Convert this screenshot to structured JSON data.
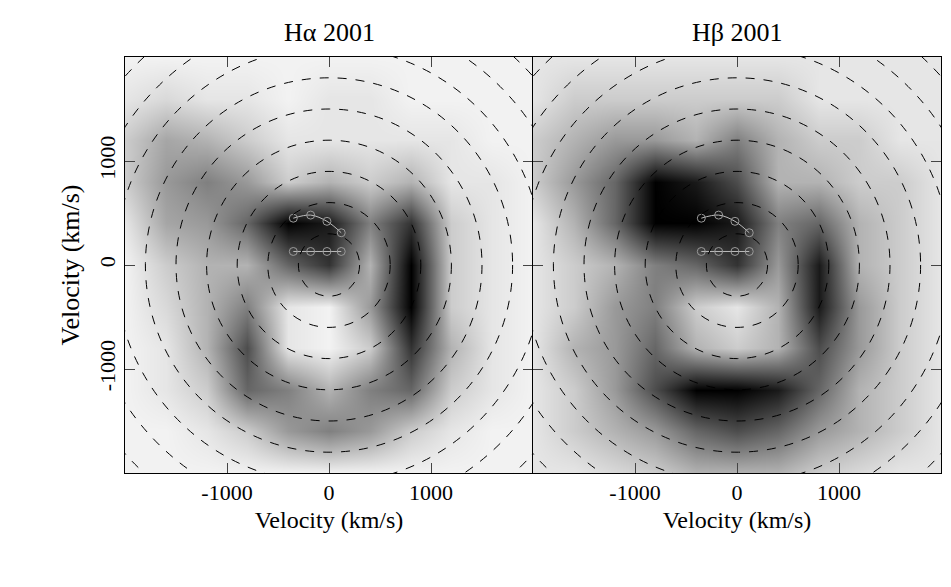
{
  "chart_data": [
    {
      "type": "heatmap",
      "title": "Hα 2001",
      "xlabel": "Velocity (km/s)",
      "ylabel": "Velocity (km/s)",
      "xlim": [
        -2000,
        2000
      ],
      "ylim": [
        -2000,
        2000
      ],
      "xticks": [
        -1000,
        0,
        1000
      ],
      "yticks": [
        -1000,
        0,
        1000
      ],
      "x": [
        -2000,
        -1600,
        -1200,
        -800,
        -400,
        0,
        400,
        800,
        1200,
        1600,
        2000
      ],
      "y": [
        -2000,
        -1600,
        -1200,
        -800,
        -400,
        0,
        400,
        800,
        1200,
        1600,
        2000
      ],
      "zlim": [
        0,
        1
      ],
      "z": [
        [
          0.05,
          0.05,
          0.05,
          0.05,
          0.05,
          0.05,
          0.05,
          0.05,
          0.05,
          0.05,
          0.05
        ],
        [
          0.05,
          0.05,
          0.1,
          0.2,
          0.4,
          0.5,
          0.4,
          0.2,
          0.1,
          0.05,
          0.05
        ],
        [
          0.05,
          0.1,
          0.2,
          0.6,
          0.5,
          0.3,
          0.5,
          0.6,
          0.2,
          0.1,
          0.05
        ],
        [
          0.05,
          0.1,
          0.3,
          0.7,
          0.1,
          0.05,
          0.2,
          0.8,
          0.3,
          0.1,
          0.05
        ],
        [
          0.05,
          0.15,
          0.3,
          0.5,
          0.1,
          0.05,
          0.4,
          1,
          0.2,
          0.1,
          0.05
        ],
        [
          0.05,
          0.2,
          0.3,
          0.3,
          0.6,
          0.8,
          0.3,
          1,
          0.2,
          0.1,
          0.05
        ],
        [
          0.1,
          0.35,
          0.4,
          0.6,
          1,
          0.9,
          0.5,
          0.8,
          0.2,
          0.1,
          0.05
        ],
        [
          0.2,
          0.4,
          0.5,
          0.4,
          0.2,
          0.3,
          0.2,
          0.3,
          0.1,
          0.1,
          0.05
        ],
        [
          0.2,
          0.35,
          0.3,
          0.2,
          0.1,
          0.1,
          0.1,
          0.1,
          0.1,
          0.05,
          0.05
        ],
        [
          0.1,
          0.15,
          0.1,
          0.1,
          0.05,
          0.1,
          0.1,
          0.05,
          0.05,
          0.05,
          0.05
        ],
        [
          0.05,
          0.05,
          0.05,
          0.05,
          0.05,
          0.05,
          0.05,
          0.05,
          0.05,
          0.05,
          0.05
        ]
      ],
      "circles": [
        300,
        600,
        900,
        1200,
        1500,
        1800,
        2100,
        2400,
        2700
      ],
      "stream": {
        "x": [
          -350,
          -180,
          -20,
          120,
          -350,
          -180,
          -20,
          120
        ],
        "y": [
          130,
          130,
          130,
          130,
          450,
          480,
          420,
          310
        ]
      },
      "color": "#000000"
    },
    {
      "type": "heatmap",
      "title": "Hβ 2001",
      "xlabel": "Velocity (km/s)",
      "xlim": [
        -2000,
        2000
      ],
      "ylim": [
        -2000,
        2000
      ],
      "xticks": [
        -1000,
        0,
        1000
      ],
      "yticks": [
        -1000,
        0,
        1000
      ],
      "tick_labels": "x",
      "x": [
        -2000,
        -1600,
        -1200,
        -800,
        -400,
        0,
        400,
        800,
        1200,
        1600,
        2000
      ],
      "y": [
        -2000,
        -1600,
        -1200,
        -800,
        -400,
        0,
        400,
        800,
        1200,
        1600,
        2000
      ],
      "zlim": [
        0,
        1
      ],
      "z": [
        [
          0.1,
          0.1,
          0.15,
          0.2,
          0.3,
          0.3,
          0.3,
          0.2,
          0.15,
          0.1,
          0.1
        ],
        [
          0.1,
          0.2,
          0.3,
          0.4,
          0.6,
          0.7,
          0.6,
          0.4,
          0.3,
          0.2,
          0.1
        ],
        [
          0.1,
          0.2,
          0.4,
          0.7,
          1,
          1,
          0.9,
          0.6,
          0.3,
          0.2,
          0.1
        ],
        [
          0.1,
          0.3,
          0.4,
          0.6,
          0.3,
          0.2,
          0.3,
          0.7,
          0.4,
          0.2,
          0.1
        ],
        [
          0.1,
          0.2,
          0.4,
          0.5,
          0.2,
          0.1,
          0.3,
          0.9,
          0.4,
          0.2,
          0.1
        ],
        [
          0.1,
          0.2,
          0.3,
          0.5,
          0.6,
          0.8,
          0.4,
          0.9,
          0.3,
          0.2,
          0.1
        ],
        [
          0.1,
          0.3,
          0.6,
          1,
          1,
          0.9,
          0.5,
          0.6,
          0.3,
          0.2,
          0.1
        ],
        [
          0.2,
          0.4,
          0.6,
          1,
          0.9,
          0.7,
          0.3,
          0.3,
          0.2,
          0.2,
          0.1
        ],
        [
          0.2,
          0.3,
          0.4,
          0.4,
          0.3,
          0.5,
          0.3,
          0.2,
          0.2,
          0.1,
          0.1
        ],
        [
          0.1,
          0.2,
          0.2,
          0.2,
          0.2,
          0.2,
          0.2,
          0.1,
          0.1,
          0.1,
          0.1
        ],
        [
          0.1,
          0.1,
          0.1,
          0.1,
          0.1,
          0.1,
          0.1,
          0.1,
          0.1,
          0.1,
          0.1
        ]
      ],
      "circles": [
        300,
        600,
        900,
        1200,
        1500,
        1800,
        2100,
        2400,
        2700
      ],
      "stream": {
        "x": [
          -350,
          -180,
          -20,
          120,
          -350,
          -180,
          -20,
          120
        ],
        "y": [
          130,
          130,
          130,
          130,
          450,
          480,
          420,
          310
        ]
      },
      "color": "#000000"
    }
  ]
}
